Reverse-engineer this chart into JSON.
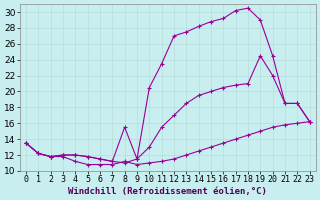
{
  "bg_color": "#c8eef0",
  "grid_color": "#aaddcc",
  "line_color": "#990099",
  "xlabel": "Windchill (Refroidissement éolien,°C)",
  "xlabel_fontsize": 6.5,
  "ylabel_fontsize": 6.5,
  "tick_fontsize": 6,
  "xlim": [
    -0.5,
    23.5
  ],
  "ylim": [
    10,
    31
  ],
  "yticks": [
    10,
    12,
    14,
    16,
    18,
    20,
    22,
    24,
    26,
    28,
    30
  ],
  "xticks": [
    0,
    1,
    2,
    3,
    4,
    5,
    6,
    7,
    8,
    9,
    10,
    11,
    12,
    13,
    14,
    15,
    16,
    17,
    18,
    19,
    20,
    21,
    22,
    23
  ],
  "line1_x": [
    0,
    1,
    2,
    3,
    4,
    5,
    6,
    7,
    8,
    9,
    10,
    11,
    12,
    13,
    14,
    15,
    16,
    17,
    18,
    19,
    20,
    21,
    22,
    23
  ],
  "line1_y": [
    13.5,
    12.2,
    11.8,
    11.8,
    11.2,
    10.8,
    10.8,
    10.8,
    11.2,
    10.8,
    11.0,
    11.2,
    11.5,
    12.0,
    12.5,
    13.0,
    13.5,
    14.0,
    14.5,
    15.0,
    15.5,
    15.8,
    16.0,
    16.2
  ],
  "line2_x": [
    0,
    1,
    2,
    3,
    4,
    5,
    6,
    7,
    8,
    9,
    10,
    11,
    12,
    13,
    14,
    15,
    16,
    17,
    18,
    19,
    20,
    21,
    22,
    23
  ],
  "line2_y": [
    13.5,
    12.2,
    11.8,
    12.0,
    12.0,
    11.8,
    11.5,
    11.2,
    15.5,
    11.5,
    20.5,
    23.5,
    27.0,
    27.5,
    28.2,
    28.8,
    29.2,
    30.2,
    30.5,
    29.0,
    24.5,
    18.5,
    18.5,
    16.2
  ],
  "line3_x": [
    0,
    1,
    2,
    3,
    4,
    5,
    6,
    7,
    8,
    9,
    10,
    11,
    12,
    13,
    14,
    15,
    16,
    17,
    18,
    19,
    20,
    21,
    22,
    23
  ],
  "line3_y": [
    13.5,
    12.2,
    11.8,
    12.0,
    12.0,
    11.8,
    11.5,
    11.2,
    11.0,
    11.5,
    13.0,
    15.5,
    17.0,
    18.5,
    19.5,
    20.0,
    20.5,
    20.8,
    21.0,
    24.5,
    22.0,
    18.5,
    18.5,
    16.2
  ]
}
